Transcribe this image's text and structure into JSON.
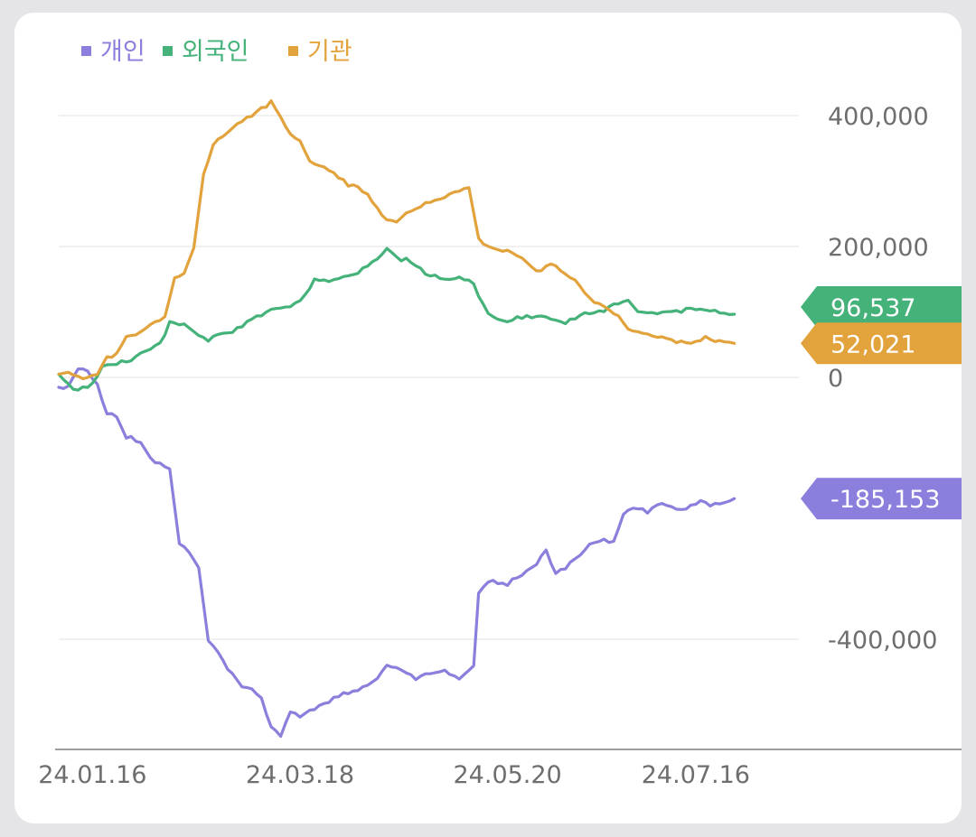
{
  "chart_data": {
    "type": "line",
    "title": "",
    "xlabel": "",
    "ylabel": "",
    "ylim": [
      -570000,
      570000
    ],
    "yticks": [
      {
        "value": 400000,
        "label": "400,000"
      },
      {
        "value": 200000,
        "label": "200,000"
      },
      {
        "value": 0,
        "label": "0"
      },
      {
        "value": -400000,
        "label": "-400,000"
      }
    ],
    "xticks": [
      {
        "index": 7,
        "label": "24.01.16"
      },
      {
        "index": 50,
        "label": "24.03.18"
      },
      {
        "index": 93,
        "label": "24.05.20"
      },
      {
        "index": 132,
        "label": "24.07.16"
      }
    ],
    "n_points": 150,
    "series": [
      {
        "name": "개인",
        "color": "#8a7fdc",
        "end_label": "-185,153",
        "keyframes": [
          [
            0,
            -15000
          ],
          [
            2,
            -15000
          ],
          [
            4,
            15000
          ],
          [
            6,
            10000
          ],
          [
            8,
            -10000
          ],
          [
            10,
            -55000
          ],
          [
            12,
            -58000
          ],
          [
            14,
            -90000
          ],
          [
            16,
            -95000
          ],
          [
            18,
            -110000
          ],
          [
            20,
            -130000
          ],
          [
            23,
            -140000
          ],
          [
            25,
            -255000
          ],
          [
            27,
            -265000
          ],
          [
            29,
            -290000
          ],
          [
            31,
            -400000
          ],
          [
            33,
            -420000
          ],
          [
            35,
            -445000
          ],
          [
            38,
            -470000
          ],
          [
            40,
            -475000
          ],
          [
            42,
            -490000
          ],
          [
            44,
            -535000
          ],
          [
            46,
            -550000
          ],
          [
            48,
            -510000
          ],
          [
            50,
            -520000
          ],
          [
            52,
            -510000
          ],
          [
            55,
            -500000
          ],
          [
            58,
            -485000
          ],
          [
            62,
            -480000
          ],
          [
            64,
            -470000
          ],
          [
            66,
            -460000
          ],
          [
            68,
            -440000
          ],
          [
            70,
            -445000
          ],
          [
            72,
            -450000
          ],
          [
            74,
            -460000
          ],
          [
            76,
            -450000
          ],
          [
            80,
            -450000
          ],
          [
            83,
            -460000
          ],
          [
            85,
            -450000
          ],
          [
            86,
            -440000
          ],
          [
            87,
            -330000
          ],
          [
            89,
            -310000
          ],
          [
            93,
            -315000
          ],
          [
            96,
            -300000
          ],
          [
            99,
            -285000
          ],
          [
            101,
            -265000
          ],
          [
            103,
            -300000
          ],
          [
            105,
            -290000
          ],
          [
            108,
            -270000
          ],
          [
            111,
            -250000
          ],
          [
            115,
            -250000
          ],
          [
            117,
            -210000
          ],
          [
            119,
            -200000
          ],
          [
            122,
            -205000
          ],
          [
            125,
            -190000
          ],
          [
            128,
            -200000
          ],
          [
            130,
            -200000
          ],
          [
            133,
            -190000
          ],
          [
            135,
            -195000
          ],
          [
            138,
            -190000
          ],
          [
            140,
            -185153
          ]
        ]
      },
      {
        "name": "외국인",
        "color": "#45b27a",
        "end_label": "96,537",
        "keyframes": [
          [
            0,
            5000
          ],
          [
            3,
            -20000
          ],
          [
            5,
            -15000
          ],
          [
            7,
            -10000
          ],
          [
            9,
            15000
          ],
          [
            12,
            20000
          ],
          [
            16,
            30000
          ],
          [
            19,
            45000
          ],
          [
            21,
            50000
          ],
          [
            23,
            85000
          ],
          [
            26,
            80000
          ],
          [
            28,
            70000
          ],
          [
            31,
            55000
          ],
          [
            33,
            65000
          ],
          [
            36,
            70000
          ],
          [
            39,
            85000
          ],
          [
            42,
            95000
          ],
          [
            45,
            105000
          ],
          [
            48,
            110000
          ],
          [
            51,
            125000
          ],
          [
            53,
            150000
          ],
          [
            56,
            145000
          ],
          [
            58,
            150000
          ],
          [
            62,
            160000
          ],
          [
            66,
            180000
          ],
          [
            68,
            195000
          ],
          [
            70,
            182000
          ],
          [
            73,
            178000
          ],
          [
            76,
            160000
          ],
          [
            80,
            150000
          ],
          [
            84,
            152000
          ],
          [
            86,
            140000
          ],
          [
            88,
            110000
          ],
          [
            89,
            95000
          ],
          [
            92,
            85000
          ],
          [
            95,
            90000
          ],
          [
            99,
            95000
          ],
          [
            102,
            90000
          ],
          [
            105,
            85000
          ],
          [
            108,
            95000
          ],
          [
            112,
            100000
          ],
          [
            115,
            110000
          ],
          [
            118,
            120000
          ],
          [
            120,
            100000
          ],
          [
            124,
            100000
          ],
          [
            128,
            100000
          ],
          [
            132,
            105000
          ],
          [
            136,
            100000
          ],
          [
            140,
            96537
          ]
        ]
      },
      {
        "name": "기관",
        "color": "#e2a23c",
        "end_label": "52,021",
        "keyframes": [
          [
            0,
            5000
          ],
          [
            2,
            10000
          ],
          [
            4,
            0
          ],
          [
            6,
            0
          ],
          [
            8,
            5000
          ],
          [
            10,
            30000
          ],
          [
            12,
            35000
          ],
          [
            14,
            60000
          ],
          [
            16,
            65000
          ],
          [
            18,
            75000
          ],
          [
            20,
            85000
          ],
          [
            22,
            90000
          ],
          [
            24,
            150000
          ],
          [
            26,
            160000
          ],
          [
            28,
            200000
          ],
          [
            30,
            310000
          ],
          [
            32,
            355000
          ],
          [
            34,
            370000
          ],
          [
            36,
            380000
          ],
          [
            38,
            390000
          ],
          [
            40,
            400000
          ],
          [
            42,
            410000
          ],
          [
            44,
            420000
          ],
          [
            46,
            400000
          ],
          [
            48,
            370000
          ],
          [
            50,
            360000
          ],
          [
            52,
            330000
          ],
          [
            54,
            325000
          ],
          [
            57,
            310000
          ],
          [
            60,
            295000
          ],
          [
            63,
            285000
          ],
          [
            65,
            270000
          ],
          [
            67,
            245000
          ],
          [
            70,
            235000
          ],
          [
            73,
            255000
          ],
          [
            76,
            265000
          ],
          [
            80,
            275000
          ],
          [
            83,
            285000
          ],
          [
            85,
            290000
          ],
          [
            87,
            210000
          ],
          [
            89,
            200000
          ],
          [
            92,
            195000
          ],
          [
            95,
            185000
          ],
          [
            98,
            170000
          ],
          [
            100,
            160000
          ],
          [
            102,
            175000
          ],
          [
            105,
            160000
          ],
          [
            108,
            140000
          ],
          [
            111,
            115000
          ],
          [
            115,
            100000
          ],
          [
            118,
            75000
          ],
          [
            121,
            65000
          ],
          [
            125,
            60000
          ],
          [
            128,
            55000
          ],
          [
            131,
            55000
          ],
          [
            134,
            60000
          ],
          [
            137,
            55000
          ],
          [
            140,
            52021
          ]
        ]
      }
    ]
  }
}
